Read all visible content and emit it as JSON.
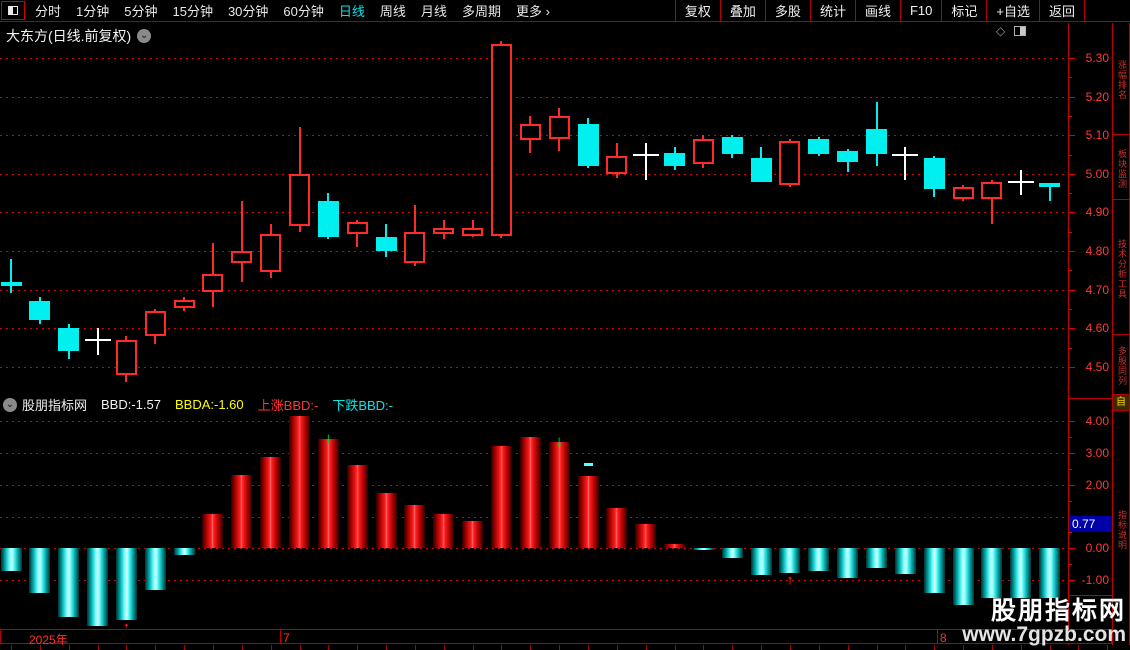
{
  "menu": {
    "left_items": [
      "分时",
      "1分钟",
      "5分钟",
      "15分钟",
      "30分钟",
      "60分钟",
      "日线",
      "周线",
      "月线",
      "多周期",
      "更多 ›"
    ],
    "active_item": "日线",
    "right_items": [
      "复权",
      "叠加",
      "多股",
      "统计",
      "画线",
      "F10",
      "标记",
      "+自选",
      "返回"
    ]
  },
  "title": {
    "stock": "大东方(日线.前复权)"
  },
  "indicator_header": {
    "source": "股朋指标网",
    "bbd": "BBD:-1.57",
    "bbda": "BBDA:-1.60",
    "up": "上涨BBD:-",
    "down": "下跌BBD:-"
  },
  "axes": {
    "price_labels": [
      "5.30",
      "5.20",
      "5.10",
      "5.00",
      "4.90",
      "4.80",
      "4.70",
      "4.60",
      "4.50"
    ],
    "indicator_labels": [
      "4.00",
      "3.00",
      "2.00",
      "0.00",
      "-1.00"
    ],
    "last_value_tag": "0.77"
  },
  "date_axis": {
    "year": "2025年",
    "months": [
      "7",
      "8"
    ]
  },
  "watermark": {
    "line1": "股朋指标网",
    "line2": "www.7gpzb.com"
  },
  "sidebar": {
    "sections": [
      "涨幅排名",
      "板块监测",
      "技术分析工具",
      "多股同列",
      "自",
      "指标说明"
    ]
  },
  "colors": {
    "up_red": "#ff2a2a",
    "down_cyan": "#00f0f0",
    "doji_white": "#ffffff",
    "grid_red": "#d40000",
    "axis_text": "#ff3838",
    "active_cyan": "#00e8e8",
    "tag_blue": "#0000aa",
    "arrow_green": "#00cf2c",
    "arrow_red": "#ff1e1e"
  },
  "chart_data": {
    "type": "candlestick+histogram",
    "title": "大东方(日线.前复权)",
    "price_panel": {
      "ylim": [
        4.44,
        5.35
      ],
      "gridlines": [
        5.3,
        5.2,
        5.1,
        5.0,
        4.9,
        4.8,
        4.7,
        4.6,
        4.5
      ],
      "candles_format": [
        "open",
        "high",
        "low",
        "close",
        "type"
      ],
      "candles": [
        [
          4.72,
          4.78,
          4.69,
          4.71,
          "down"
        ],
        [
          4.67,
          4.68,
          4.61,
          4.62,
          "down"
        ],
        [
          4.6,
          4.61,
          4.52,
          4.54,
          "down"
        ],
        [
          4.57,
          4.6,
          4.53,
          4.57,
          "doji"
        ],
        [
          4.48,
          4.58,
          4.46,
          4.57,
          "up"
        ],
        [
          4.58,
          4.65,
          4.56,
          4.645,
          "up"
        ],
        [
          4.652,
          4.68,
          4.645,
          4.672,
          "up"
        ],
        [
          4.695,
          4.82,
          4.655,
          4.74,
          "up"
        ],
        [
          4.77,
          4.93,
          4.72,
          4.8,
          "up"
        ],
        [
          4.745,
          4.87,
          4.73,
          4.845,
          "up"
        ],
        [
          4.865,
          5.12,
          4.85,
          5.0,
          "up"
        ],
        [
          4.93,
          4.95,
          4.83,
          4.835,
          "down"
        ],
        [
          4.845,
          4.88,
          4.81,
          4.875,
          "up"
        ],
        [
          4.835,
          4.87,
          4.785,
          4.8,
          "down"
        ],
        [
          4.77,
          4.92,
          4.76,
          4.85,
          "up"
        ],
        [
          4.845,
          4.88,
          4.83,
          4.86,
          "up"
        ],
        [
          4.84,
          4.88,
          4.835,
          4.86,
          "up"
        ],
        [
          4.84,
          5.345,
          4.833,
          5.335,
          "up"
        ],
        [
          5.088,
          5.15,
          5.055,
          5.13,
          "up"
        ],
        [
          5.09,
          5.17,
          5.06,
          5.15,
          "up"
        ],
        [
          5.13,
          5.145,
          5.015,
          5.02,
          "down"
        ],
        [
          5.0,
          5.08,
          4.99,
          5.045,
          "up"
        ],
        [
          5.05,
          5.08,
          4.985,
          5.05,
          "doji"
        ],
        [
          5.055,
          5.07,
          5.01,
          5.02,
          "down"
        ],
        [
          5.025,
          5.1,
          5.015,
          5.09,
          "up"
        ],
        [
          5.095,
          5.1,
          5.04,
          5.05,
          "down"
        ],
        [
          5.04,
          5.07,
          4.98,
          4.98,
          "down"
        ],
        [
          4.97,
          5.09,
          4.965,
          5.085,
          "up"
        ],
        [
          5.09,
          5.095,
          5.045,
          5.05,
          "down"
        ],
        [
          5.06,
          5.065,
          5.005,
          5.03,
          "down"
        ],
        [
          5.115,
          5.185,
          5.02,
          5.05,
          "down"
        ],
        [
          5.05,
          5.07,
          4.985,
          5.05,
          "doji"
        ],
        [
          5.04,
          5.045,
          4.94,
          4.96,
          "down"
        ],
        [
          4.935,
          4.97,
          4.93,
          4.965,
          "up"
        ],
        [
          4.935,
          4.985,
          4.87,
          4.98,
          "up"
        ],
        [
          4.98,
          5.01,
          4.945,
          4.98,
          "doji"
        ],
        [
          4.975,
          4.975,
          4.93,
          4.965,
          "down"
        ]
      ]
    },
    "indicator_panel": {
      "name": "BBD",
      "ylim": [
        -2.6,
        4.3
      ],
      "gridlines": [
        4,
        3,
        2,
        1,
        0,
        -1
      ],
      "values": [
        -0.71,
        -1.41,
        -2.16,
        -2.44,
        -2.26,
        -1.3,
        -0.21,
        1.07,
        2.3,
        2.87,
        4.17,
        3.45,
        2.63,
        1.75,
        1.37,
        1.09,
        0.85,
        3.22,
        3.5,
        3.35,
        2.28,
        1.27,
        0.75,
        0.13,
        -0.05,
        -0.3,
        -0.85,
        -0.79,
        -0.71,
        -0.94,
        -0.63,
        -0.82,
        -1.42,
        -1.77,
        -1.57,
        -1.57,
        -1.57
      ],
      "last_value": -1.57,
      "axis_tag_value": 0.77,
      "markers": {
        "green_down_arrow_slots": [
          12,
          20
        ],
        "red_up_arrow_slots": [
          5,
          28
        ],
        "cyan_dash": {
          "slot": 21,
          "value": 2.68
        }
      }
    }
  }
}
